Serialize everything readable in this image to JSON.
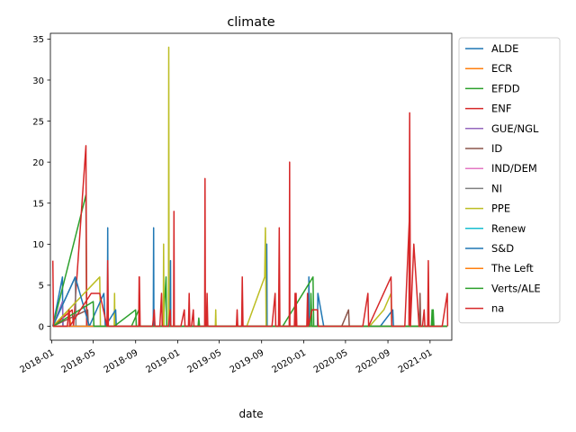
{
  "chart_data": {
    "type": "line",
    "title": "climate",
    "xlabel": "date",
    "ylabel": "",
    "x_axis": {
      "type": "date",
      "range": [
        "2017-12-28",
        "2021-03-05"
      ],
      "ticks": [
        "2018-01",
        "2018-05",
        "2018-09",
        "2019-01",
        "2019-05",
        "2019-09",
        "2020-01",
        "2020-05",
        "2020-09",
        "2021-01"
      ]
    },
    "y_axis": {
      "range": [
        -1.7,
        35.7
      ],
      "ticks": [
        0,
        5,
        10,
        15,
        20,
        25,
        30,
        35
      ]
    },
    "grid": false,
    "legend_position": "outside-right",
    "series": [
      {
        "name": "ALDE",
        "color": "#1f77b4",
        "points": [
          [
            "2018-01-04",
            0
          ],
          [
            "2018-02-01",
            6
          ],
          [
            "2018-02-02",
            0
          ],
          [
            "2018-06-11",
            0
          ],
          [
            "2018-06-12",
            12
          ],
          [
            "2018-06-13",
            0
          ],
          [
            "2018-10-22",
            0
          ],
          [
            "2018-10-23",
            12
          ],
          [
            "2018-10-24",
            0
          ],
          [
            "2019-09-15",
            0
          ],
          [
            "2019-09-16",
            10
          ],
          [
            "2019-09-17",
            0
          ],
          [
            "2020-01-15",
            0
          ],
          [
            "2020-01-16",
            6
          ],
          [
            "2020-01-17",
            0
          ],
          [
            "2021-02-20",
            0
          ]
        ]
      },
      {
        "name": "ECR",
        "color": "#ff7f0e",
        "points": [
          [
            "2018-01-04",
            0
          ],
          [
            "2018-02-20",
            2
          ],
          [
            "2018-02-25",
            0
          ],
          [
            "2019-10-10",
            0
          ],
          [
            "2021-02-20",
            0
          ]
        ]
      },
      {
        "name": "EFDD",
        "color": "#2ca02c",
        "points": [
          [
            "2018-01-04",
            0
          ],
          [
            "2018-04-10",
            16
          ],
          [
            "2018-04-12",
            0
          ],
          [
            "2018-08-20",
            0
          ],
          [
            "2018-09-10",
            2
          ],
          [
            "2018-09-12",
            0
          ],
          [
            "2018-11-20",
            0
          ],
          [
            "2018-11-28",
            6
          ],
          [
            "2018-11-30",
            0
          ],
          [
            "2019-11-01",
            0
          ],
          [
            "2020-01-28",
            6
          ],
          [
            "2020-01-30",
            0
          ],
          [
            "2021-01-08",
            0
          ],
          [
            "2021-01-10",
            2
          ],
          [
            "2021-01-12",
            0
          ],
          [
            "2021-02-20",
            0
          ]
        ]
      },
      {
        "name": "ENF",
        "color": "#d62728",
        "points": [
          [
            "2018-01-04",
            0
          ],
          [
            "2018-03-01",
            2
          ],
          [
            "2018-03-05",
            0
          ],
          [
            "2018-04-10",
            22
          ],
          [
            "2018-04-12",
            0
          ],
          [
            "2018-09-10",
            0
          ],
          [
            "2018-09-11",
            6
          ],
          [
            "2018-09-12",
            0
          ],
          [
            "2018-12-20",
            0
          ],
          [
            "2018-12-21",
            14
          ],
          [
            "2018-12-22",
            0
          ],
          [
            "2019-03-20",
            0
          ],
          [
            "2019-03-21",
            18
          ],
          [
            "2019-03-22",
            0
          ],
          [
            "2019-11-20",
            0
          ],
          [
            "2019-11-21",
            20
          ],
          [
            "2019-11-22",
            0
          ],
          [
            "2020-11-01",
            0
          ],
          [
            "2020-11-03",
            26
          ],
          [
            "2020-11-05",
            0
          ],
          [
            "2021-02-20",
            0
          ]
        ]
      },
      {
        "name": "GUE/NGL",
        "color": "#9467bd",
        "points": [
          [
            "2018-01-04",
            0
          ],
          [
            "2018-02-01",
            3
          ],
          [
            "2018-02-03",
            0
          ],
          [
            "2021-02-20",
            0
          ]
        ]
      },
      {
        "name": "ID",
        "color": "#8c564b",
        "points": [
          [
            "2018-01-04",
            0
          ],
          [
            "2018-04-15",
            2
          ],
          [
            "2018-04-17",
            0
          ],
          [
            "2020-04-20",
            0
          ],
          [
            "2020-05-10",
            2
          ],
          [
            "2020-05-12",
            0
          ],
          [
            "2020-12-01",
            0
          ],
          [
            "2020-12-03",
            4
          ],
          [
            "2020-12-05",
            0
          ],
          [
            "2021-02-20",
            0
          ]
        ]
      },
      {
        "name": "IND/DEM",
        "color": "#e377c2",
        "points": [
          [
            "2018-01-04",
            0
          ],
          [
            "2021-02-20",
            0
          ]
        ]
      },
      {
        "name": "NI",
        "color": "#7f7f7f",
        "points": [
          [
            "2018-01-04",
            0
          ],
          [
            "2018-03-10",
            6
          ],
          [
            "2018-03-12",
            0
          ],
          [
            "2021-02-20",
            0
          ]
        ]
      },
      {
        "name": "PPE",
        "color": "#bcbd22",
        "points": [
          [
            "2018-01-04",
            0
          ],
          [
            "2018-05-20",
            6
          ],
          [
            "2018-05-22",
            0
          ],
          [
            "2018-07-01",
            0
          ],
          [
            "2018-07-02",
            4
          ],
          [
            "2018-07-03",
            0
          ],
          [
            "2018-11-20",
            0
          ],
          [
            "2018-11-21",
            10
          ],
          [
            "2018-11-22",
            0
          ],
          [
            "2018-12-05",
            0
          ],
          [
            "2018-12-06",
            34
          ],
          [
            "2018-12-07",
            0
          ],
          [
            "2019-04-20",
            0
          ],
          [
            "2019-04-21",
            2
          ],
          [
            "2019-04-22",
            0
          ],
          [
            "2019-07-20",
            0
          ],
          [
            "2019-09-10",
            6
          ],
          [
            "2019-09-12",
            12
          ],
          [
            "2019-09-14",
            0
          ],
          [
            "2020-07-10",
            0
          ],
          [
            "2020-08-20",
            2
          ],
          [
            "2020-09-10",
            4
          ],
          [
            "2020-09-12",
            0
          ],
          [
            "2021-02-20",
            0
          ]
        ]
      },
      {
        "name": "Renew",
        "color": "#17becf",
        "points": [
          [
            "2018-01-04",
            0
          ],
          [
            "2021-02-20",
            0
          ]
        ]
      },
      {
        "name": "S&D",
        "color": "#1f77b4",
        "points": [
          [
            "2018-01-04",
            0
          ],
          [
            "2018-03-10",
            6
          ],
          [
            "2018-04-20",
            0
          ],
          [
            "2018-06-01",
            4
          ],
          [
            "2018-06-05",
            0
          ],
          [
            "2018-07-05",
            2
          ],
          [
            "2018-07-07",
            0
          ],
          [
            "2018-12-10",
            0
          ],
          [
            "2018-12-11",
            8
          ],
          [
            "2018-12-12",
            0
          ],
          [
            "2020-02-10",
            0
          ],
          [
            "2020-02-11",
            4
          ],
          [
            "2020-02-28",
            0
          ],
          [
            "2020-08-10",
            0
          ],
          [
            "2020-09-15",
            2
          ],
          [
            "2020-09-17",
            0
          ],
          [
            "2021-02-20",
            0
          ]
        ]
      },
      {
        "name": "The Left",
        "color": "#ff7f0e",
        "points": [
          [
            "2018-01-04",
            0
          ],
          [
            "2021-02-20",
            0
          ]
        ]
      },
      {
        "name": "Verts/ALE",
        "color": "#2ca02c",
        "points": [
          [
            "2018-01-04",
            0
          ],
          [
            "2018-05-01",
            3
          ],
          [
            "2018-05-03",
            0
          ],
          [
            "2018-07-01",
            0
          ],
          [
            "2018-09-01",
            2
          ],
          [
            "2018-09-03",
            0
          ],
          [
            "2019-03-01",
            0
          ],
          [
            "2019-03-03",
            1
          ],
          [
            "2019-03-05",
            0
          ],
          [
            "2020-01-20",
            0
          ],
          [
            "2020-01-22",
            4
          ],
          [
            "2020-01-25",
            0
          ],
          [
            "2021-01-05",
            0
          ],
          [
            "2021-01-07",
            2
          ],
          [
            "2021-01-09",
            0
          ],
          [
            "2021-02-20",
            0
          ]
        ]
      },
      {
        "name": "na",
        "color": "#d62728",
        "points": [
          [
            "2018-01-04",
            8
          ],
          [
            "2018-01-06",
            0
          ],
          [
            "2018-02-15",
            0
          ],
          [
            "2018-02-20",
            2
          ],
          [
            "2018-02-22",
            0
          ],
          [
            "2018-04-25",
            4
          ],
          [
            "2018-05-20",
            4
          ],
          [
            "2018-06-10",
            0
          ],
          [
            "2018-06-12",
            8
          ],
          [
            "2018-06-14",
            0
          ],
          [
            "2018-09-10",
            0
          ],
          [
            "2018-09-12",
            6
          ],
          [
            "2018-09-14",
            0
          ],
          [
            "2018-10-20",
            0
          ],
          [
            "2018-10-25",
            2
          ],
          [
            "2018-10-27",
            0
          ],
          [
            "2018-11-10",
            0
          ],
          [
            "2018-11-15",
            4
          ],
          [
            "2018-11-17",
            0
          ],
          [
            "2018-12-05",
            0
          ],
          [
            "2018-12-10",
            2
          ],
          [
            "2018-12-12",
            0
          ],
          [
            "2019-01-10",
            0
          ],
          [
            "2019-01-20",
            2
          ],
          [
            "2019-01-22",
            0
          ],
          [
            "2019-02-01",
            0
          ],
          [
            "2019-02-03",
            4
          ],
          [
            "2019-02-05",
            0
          ],
          [
            "2019-02-10",
            0
          ],
          [
            "2019-02-15",
            2
          ],
          [
            "2019-02-17",
            0
          ],
          [
            "2019-03-25",
            0
          ],
          [
            "2019-03-27",
            4
          ],
          [
            "2019-03-29",
            0
          ],
          [
            "2019-06-20",
            0
          ],
          [
            "2019-06-22",
            2
          ],
          [
            "2019-06-24",
            0
          ],
          [
            "2019-07-05",
            0
          ],
          [
            "2019-07-07",
            6
          ],
          [
            "2019-07-09",
            0
          ],
          [
            "2019-10-01",
            0
          ],
          [
            "2019-10-10",
            4
          ],
          [
            "2019-10-12",
            0
          ],
          [
            "2019-10-20",
            0
          ],
          [
            "2019-10-22",
            12
          ],
          [
            "2019-10-24",
            0
          ],
          [
            "2019-12-05",
            0
          ],
          [
            "2019-12-07",
            4
          ],
          [
            "2019-12-09",
            0
          ],
          [
            "2019-12-10",
            4
          ],
          [
            "2019-12-12",
            0
          ],
          [
            "2020-01-10",
            0
          ],
          [
            "2020-01-12",
            4
          ],
          [
            "2020-01-14",
            0
          ],
          [
            "2020-01-25",
            2
          ],
          [
            "2020-02-10",
            2
          ],
          [
            "2020-02-12",
            0
          ],
          [
            "2020-06-20",
            0
          ],
          [
            "2020-07-05",
            4
          ],
          [
            "2020-07-07",
            0
          ],
          [
            "2020-09-10",
            6
          ],
          [
            "2020-09-12",
            0
          ],
          [
            "2020-10-20",
            0
          ],
          [
            "2020-11-03",
            14
          ],
          [
            "2020-11-05",
            0
          ],
          [
            "2020-11-15",
            10
          ],
          [
            "2020-11-30",
            0
          ],
          [
            "2020-12-10",
            0
          ],
          [
            "2020-12-15",
            2
          ],
          [
            "2020-12-17",
            0
          ],
          [
            "2020-12-25",
            0
          ],
          [
            "2020-12-27",
            8
          ],
          [
            "2020-12-29",
            0
          ],
          [
            "2021-02-05",
            0
          ],
          [
            "2021-02-20",
            4
          ],
          [
            "2021-02-21",
            0
          ]
        ]
      }
    ]
  }
}
